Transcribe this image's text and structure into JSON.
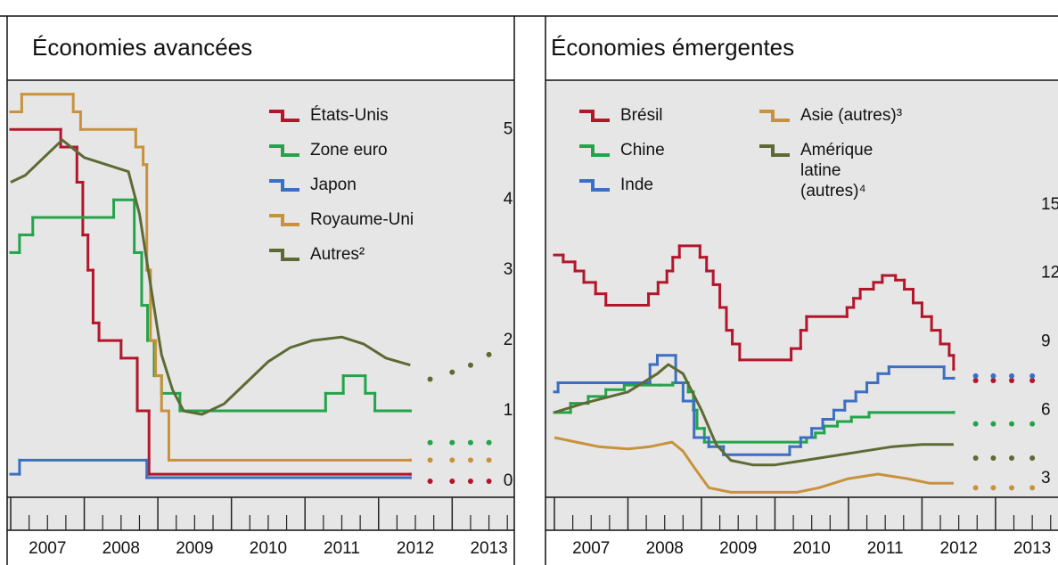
{
  "chart_data": [
    {
      "type": "line",
      "title": "Économies avancées",
      "xlim": [
        2007,
        2013.82
      ],
      "xticks": [
        2007,
        2008,
        2009,
        2010,
        2011,
        2012,
        2013
      ],
      "ylim": [
        -0.19,
        5.7
      ],
      "yticks": [
        0,
        1,
        2,
        3,
        4,
        5
      ],
      "grid": false,
      "projection_x": [
        2012.7,
        2013.0,
        2013.25,
        2013.5
      ],
      "series": [
        {
          "name": "États-Unis",
          "color": "#b3162a",
          "step": true,
          "x": [
            2007.0,
            2007.68,
            2007.9,
            2007.98,
            2008.05,
            2008.12,
            2008.2,
            2008.5,
            2008.72,
            2008.88,
            2012.43
          ],
          "values": [
            5.0,
            4.75,
            4.25,
            3.5,
            3.0,
            2.25,
            2.0,
            1.75,
            1.0,
            0.1,
            0.1
          ],
          "projection": [
            0,
            0,
            0,
            0
          ]
        },
        {
          "name": "Zone euro",
          "color": "#23a44a",
          "step": true,
          "x": [
            2007.0,
            2007.12,
            2007.3,
            2008.4,
            2008.68,
            2008.78,
            2008.86,
            2008.95,
            2009.05,
            2009.3,
            2011.28,
            2011.52,
            2011.82,
            2011.95,
            2012.43
          ],
          "values": [
            3.25,
            3.5,
            3.75,
            4.0,
            3.25,
            2.5,
            2.0,
            1.5,
            1.25,
            1.0,
            1.25,
            1.5,
            1.25,
            1.0,
            1.0
          ],
          "projection": [
            0.55,
            0.55,
            0.55,
            0.55
          ]
        },
        {
          "name": "Japon",
          "color": "#3c6fc2",
          "step": true,
          "x": [
            2007.0,
            2007.12,
            2008.85,
            2012.43
          ],
          "values": [
            0.1,
            0.3,
            0.05,
            0.05
          ]
        },
        {
          "name": "Royaume-Uni",
          "color": "#c8923c",
          "step": true,
          "x": [
            2007.0,
            2007.15,
            2007.85,
            2007.95,
            2008.7,
            2008.8,
            2008.85,
            2008.9,
            2008.97,
            2009.05,
            2009.15,
            2012.43
          ],
          "values": [
            5.25,
            5.5,
            5.25,
            5.0,
            4.75,
            4.5,
            3.0,
            2.0,
            1.5,
            1.0,
            0.3,
            0.3
          ],
          "projection": [
            0.3,
            0.3,
            0.3,
            0.3
          ]
        },
        {
          "name": "Autres²",
          "color": "#5e6a34",
          "step": false,
          "x": [
            2007.0,
            2007.2,
            2007.45,
            2007.7,
            2008.0,
            2008.3,
            2008.6,
            2008.75,
            2008.9,
            2009.05,
            2009.2,
            2009.35,
            2009.6,
            2009.9,
            2010.2,
            2010.5,
            2010.8,
            2011.1,
            2011.5,
            2011.8,
            2012.1,
            2012.43
          ],
          "values": [
            4.25,
            4.35,
            4.6,
            4.85,
            4.6,
            4.5,
            4.4,
            3.8,
            2.8,
            1.8,
            1.3,
            1.0,
            0.95,
            1.1,
            1.4,
            1.7,
            1.9,
            2.0,
            2.05,
            1.95,
            1.75,
            1.65
          ],
          "projection": [
            1.45,
            1.55,
            1.65,
            1.8
          ]
        }
      ]
    },
    {
      "type": "line",
      "title": "Économies émergentes",
      "xlim": [
        2007,
        2013.85
      ],
      "xticks": [
        2007,
        2008,
        2009,
        2010,
        2011,
        2012,
        2013
      ],
      "ylim": [
        2.3,
        20.46
      ],
      "yticks": [
        3,
        6,
        9,
        12,
        15
      ],
      "grid": false,
      "projection_x": [
        2012.73,
        2012.97,
        2013.22,
        2013.5
      ],
      "series": [
        {
          "name": "Brésil",
          "color": "#b3162a",
          "step": true,
          "x": [
            2007.0,
            2007.12,
            2007.28,
            2007.4,
            2007.56,
            2007.7,
            2008.28,
            2008.41,
            2008.53,
            2008.61,
            2008.7,
            2008.98,
            2009.07,
            2009.16,
            2009.25,
            2009.34,
            2009.42,
            2009.52,
            2010.22,
            2010.35,
            2010.43,
            2010.98,
            2011.07,
            2011.16,
            2011.34,
            2011.46,
            2011.64,
            2011.76,
            2011.88,
            2012.0,
            2012.13,
            2012.25,
            2012.37,
            2012.43
          ],
          "values": [
            12.8,
            12.5,
            12.1,
            11.6,
            11.1,
            10.6,
            11.1,
            11.6,
            12.1,
            12.7,
            13.2,
            12.7,
            12.1,
            11.5,
            10.5,
            9.5,
            8.9,
            8.2,
            8.7,
            9.5,
            10.1,
            10.5,
            10.9,
            11.3,
            11.6,
            11.9,
            11.7,
            11.3,
            10.7,
            10.1,
            9.5,
            8.9,
            8.4,
            7.8
          ],
          "projection": [
            7.3,
            7.3,
            7.3,
            7.3
          ]
        },
        {
          "name": "Chine",
          "color": "#23a44a",
          "step": true,
          "x": [
            2007.0,
            2007.22,
            2007.46,
            2007.7,
            2007.95,
            2008.43,
            2008.61,
            2008.82,
            2008.89,
            2008.94,
            2009.04,
            2010.43,
            2010.55,
            2010.67,
            2010.85,
            2011.04,
            2011.28,
            2012.43
          ],
          "values": [
            5.9,
            6.3,
            6.6,
            6.9,
            7.1,
            7.1,
            7.2,
            6.8,
            6.0,
            5.2,
            4.6,
            4.8,
            5.0,
            5.3,
            5.5,
            5.7,
            5.9,
            5.9
          ],
          "projection": [
            5.4,
            5.4,
            5.4,
            5.4
          ]
        },
        {
          "name": "Inde",
          "color": "#3c6fc2",
          "step": true,
          "x": [
            2007.0,
            2007.05,
            2008.3,
            2008.4,
            2008.65,
            2008.75,
            2008.9,
            2009.1,
            2009.3,
            2010.2,
            2010.35,
            2010.5,
            2010.65,
            2010.8,
            2010.95,
            2011.1,
            2011.25,
            2011.4,
            2011.55,
            2012.3,
            2012.43
          ],
          "values": [
            6.8,
            7.2,
            8.0,
            8.4,
            7.2,
            6.4,
            4.8,
            4.4,
            4.05,
            4.4,
            4.8,
            5.2,
            5.6,
            6.0,
            6.4,
            6.8,
            7.2,
            7.6,
            7.9,
            7.4,
            7.4
          ],
          "projection": [
            7.5,
            7.5,
            7.5,
            7.5
          ]
        },
        {
          "name": "Asie (autres)³",
          "color": "#c8923c",
          "step": false,
          "x": [
            2007.0,
            2007.3,
            2007.6,
            2008.0,
            2008.3,
            2008.6,
            2008.75,
            2008.9,
            2009.1,
            2009.4,
            2009.8,
            2010.3,
            2010.6,
            2011.0,
            2011.4,
            2011.8,
            2012.1,
            2012.43
          ],
          "values": [
            4.8,
            4.6,
            4.4,
            4.3,
            4.4,
            4.6,
            4.2,
            3.5,
            2.6,
            2.4,
            2.4,
            2.4,
            2.6,
            3.0,
            3.2,
            3.0,
            2.8,
            2.8
          ],
          "projection": [
            2.6,
            2.6,
            2.6,
            2.6
          ]
        },
        {
          "name": "Amérique latine (autres)⁴",
          "color": "#5e6a34",
          "step": false,
          "x": [
            2007.0,
            2007.4,
            2008.0,
            2008.4,
            2008.55,
            2008.75,
            2009.0,
            2009.2,
            2009.4,
            2009.7,
            2010.0,
            2010.4,
            2010.8,
            2011.2,
            2011.6,
            2012.0,
            2012.43
          ],
          "values": [
            5.9,
            6.3,
            6.8,
            7.6,
            8.0,
            7.6,
            6.0,
            4.5,
            3.8,
            3.6,
            3.6,
            3.8,
            4.0,
            4.2,
            4.4,
            4.5,
            4.5
          ],
          "projection": [
            3.9,
            3.9,
            3.9,
            3.9
          ]
        }
      ]
    }
  ]
}
